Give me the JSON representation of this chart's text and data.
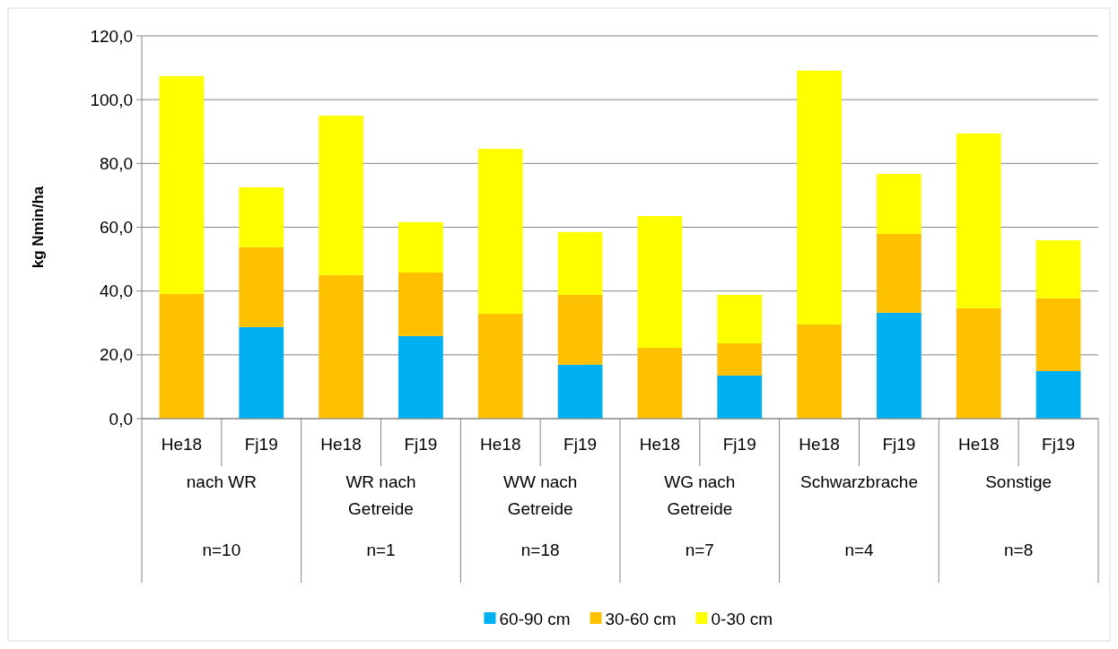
{
  "chart_data": {
    "type": "bar",
    "stacked": true,
    "ylabel": "kg Nmin/ha",
    "categories": [
      "He18",
      "Fj19",
      "He18",
      "Fj19",
      "He18",
      "Fj19",
      "He18",
      "Fj19",
      "He18",
      "Fj19",
      "He18",
      "Fj19"
    ],
    "series": [
      {
        "name": "60-90 cm",
        "color": "#00b0f0",
        "values": [
          0,
          28.7,
          0,
          25.9,
          0,
          16.9,
          0,
          13.5,
          0,
          33.2,
          0,
          14.9
        ]
      },
      {
        "name": "30-60 cm",
        "color": "#ffc000",
        "values": [
          39.1,
          25.0,
          45.0,
          19.9,
          32.9,
          21.9,
          22.2,
          10.1,
          29.5,
          24.7,
          34.6,
          22.8
        ]
      },
      {
        "name": "0-30 cm",
        "color": "#ffff00",
        "values": [
          68.3,
          18.8,
          50.0,
          15.8,
          51.7,
          19.7,
          41.3,
          15.2,
          79.6,
          18.8,
          54.8,
          18.2
        ]
      }
    ],
    "annotations": [
      "nach WR",
      "WR nach Getreide",
      "WW nach Getreide",
      "WG nach Getreide",
      "Schwarzbrache",
      "Sonstige",
      "n=10",
      "n=1",
      "n=18",
      "n=7",
      "n=4",
      "n=8"
    ],
    "ylim": [
      0,
      120
    ],
    "yticks": [
      {
        "value": 0,
        "label": "0,0"
      },
      {
        "value": 20,
        "label": "20,0"
      },
      {
        "value": 40,
        "label": "40,0"
      },
      {
        "value": 60,
        "label": "60,0"
      },
      {
        "value": 80,
        "label": "80,0"
      },
      {
        "value": 100,
        "label": "100,0"
      },
      {
        "value": 120,
        "label": "120,0"
      }
    ],
    "grid": "y",
    "legend": "bottom"
  }
}
